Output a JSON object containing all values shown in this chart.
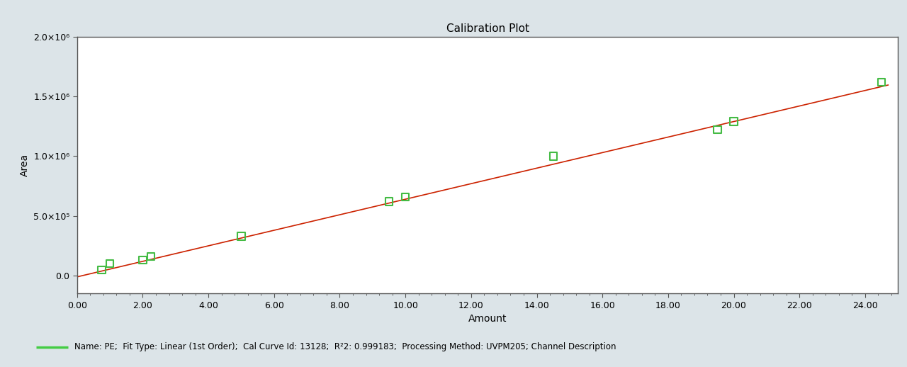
{
  "title": "Calibration Plot",
  "xlabel": "Amount",
  "ylabel": "Area",
  "x_data": [
    0.75,
    1.0,
    2.0,
    2.25,
    5.0,
    9.5,
    10.0,
    14.5,
    19.5,
    20.0,
    24.5
  ],
  "y_data": [
    50000,
    100000,
    130000,
    160000,
    330000,
    620000,
    660000,
    1000000,
    1220000,
    1290000,
    1620000
  ],
  "line_slope": 65000,
  "line_intercept": -10000,
  "x_line_start": 0.0,
  "x_line_end": 24.7,
  "xlim": [
    0.0,
    25.0
  ],
  "ylim": [
    -150000,
    2000000
  ],
  "x_ticks": [
    0.0,
    2.0,
    4.0,
    6.0,
    8.0,
    10.0,
    12.0,
    14.0,
    16.0,
    18.0,
    20.0,
    22.0,
    24.0
  ],
  "y_ticks": [
    0,
    500000,
    1000000,
    1500000,
    2000000
  ],
  "y_tick_labels": [
    "0.0",
    "5.0×10⁵",
    "1.0×10⁶",
    "1.5×10⁶",
    "2.0×10⁶"
  ],
  "line_color": "#cc2200",
  "marker_color": "#44bb44",
  "marker_edge_color": "#44bb44",
  "bg_color": "#dce4e8",
  "plot_bg_color": "#ffffff",
  "title_fontsize": 11,
  "axis_label_fontsize": 10,
  "tick_fontsize": 9,
  "footer_text": "Name: PE;  Fit Type: Linear (1st Order);  Cal Curve Id: 13128;  R²2: 0.999183;  Processing Method: UVPM205; Channel Description",
  "footer_line_color": "#44cc44",
  "spine_color": "#555555",
  "font_family": "DejaVu Sans"
}
